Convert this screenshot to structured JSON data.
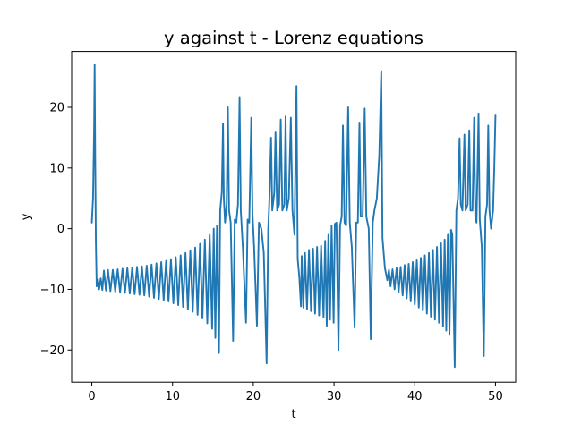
{
  "chart_data": {
    "type": "line",
    "title": "y against t - Lorenz equations",
    "xlabel": "t",
    "ylabel": "y",
    "xlim": [
      -2.5,
      52.5
    ],
    "ylim": [
      -25.3,
      29.2
    ],
    "x_ticks": [
      0,
      10,
      20,
      30,
      40,
      50
    ],
    "y_ticks": [
      -20,
      -10,
      0,
      10,
      20
    ],
    "x_tick_labels": [
      "0",
      "10",
      "20",
      "30",
      "40",
      "50"
    ],
    "y_tick_labels": [
      "−20",
      "−10",
      "0",
      "10",
      "20"
    ],
    "grid": false,
    "legend": false,
    "series": [
      {
        "color": "#1f77b4",
        "points": [
          [
            0.0,
            1.0
          ],
          [
            0.15,
            5.0
          ],
          [
            0.28,
            16.0
          ],
          [
            0.35,
            27.0
          ],
          [
            0.42,
            12.0
          ],
          [
            0.5,
            -2.0
          ],
          [
            0.6,
            -9.5
          ],
          [
            0.75,
            -8.3
          ],
          [
            0.9,
            -10.0
          ],
          [
            1.1,
            -8.2
          ],
          [
            1.3,
            -10.1
          ],
          [
            1.5,
            -6.9
          ],
          [
            1.75,
            -10.2
          ],
          [
            2.0,
            -6.8
          ],
          [
            2.3,
            -10.3
          ],
          [
            2.6,
            -6.8
          ],
          [
            2.9,
            -10.4
          ],
          [
            3.2,
            -6.7
          ],
          [
            3.5,
            -10.5
          ],
          [
            3.8,
            -6.6
          ],
          [
            4.1,
            -10.6
          ],
          [
            4.4,
            -6.5
          ],
          [
            4.7,
            -10.7
          ],
          [
            5.0,
            -6.4
          ],
          [
            5.3,
            -10.8
          ],
          [
            5.6,
            -6.3
          ],
          [
            5.9,
            -10.9
          ],
          [
            6.2,
            -6.2
          ],
          [
            6.5,
            -11.0
          ],
          [
            6.8,
            -6.1
          ],
          [
            7.1,
            -11.2
          ],
          [
            7.4,
            -5.9
          ],
          [
            7.7,
            -11.4
          ],
          [
            8.0,
            -5.7
          ],
          [
            8.3,
            -11.6
          ],
          [
            8.6,
            -5.5
          ],
          [
            8.9,
            -11.8
          ],
          [
            9.2,
            -5.3
          ],
          [
            9.5,
            -12.0
          ],
          [
            9.8,
            -5.0
          ],
          [
            10.1,
            -12.3
          ],
          [
            10.4,
            -4.7
          ],
          [
            10.7,
            -12.6
          ],
          [
            11.0,
            -4.4
          ],
          [
            11.3,
            -12.9
          ],
          [
            11.6,
            -4.0
          ],
          [
            11.9,
            -13.3
          ],
          [
            12.2,
            -3.6
          ],
          [
            12.5,
            -13.7
          ],
          [
            12.8,
            -3.1
          ],
          [
            13.1,
            -14.2
          ],
          [
            13.4,
            -2.5
          ],
          [
            13.7,
            -14.8
          ],
          [
            14.0,
            -1.8
          ],
          [
            14.3,
            -15.6
          ],
          [
            14.6,
            -1.0
          ],
          [
            14.9,
            -16.5
          ],
          [
            15.1,
            0.0
          ],
          [
            15.3,
            -18.0
          ],
          [
            15.5,
            0.5
          ],
          [
            15.75,
            -20.5
          ],
          [
            15.9,
            3.0
          ],
          [
            16.1,
            6.0
          ],
          [
            16.25,
            17.3
          ],
          [
            16.35,
            5.0
          ],
          [
            16.5,
            1.0
          ],
          [
            16.7,
            4.0
          ],
          [
            16.85,
            20.0
          ],
          [
            17.0,
            3.0
          ],
          [
            17.2,
            1.0
          ],
          [
            17.5,
            -18.5
          ],
          [
            17.7,
            1.5
          ],
          [
            17.9,
            1.0
          ],
          [
            18.1,
            4.0
          ],
          [
            18.3,
            21.7
          ],
          [
            18.45,
            3.0
          ],
          [
            18.7,
            -3.0
          ],
          [
            19.1,
            -15.5
          ],
          [
            19.3,
            1.5
          ],
          [
            19.5,
            1.0
          ],
          [
            19.75,
            18.3
          ],
          [
            19.9,
            2.5
          ],
          [
            20.1,
            -3.0
          ],
          [
            20.45,
            -16.0
          ],
          [
            20.7,
            1.0
          ],
          [
            21.0,
            0.0
          ],
          [
            21.3,
            -4.0
          ],
          [
            21.65,
            -22.2
          ],
          [
            21.85,
            0.0
          ],
          [
            22.0,
            5.0
          ],
          [
            22.2,
            15.0
          ],
          [
            22.35,
            3.0
          ],
          [
            22.6,
            6.0
          ],
          [
            22.75,
            16.0
          ],
          [
            22.95,
            3.0
          ],
          [
            23.2,
            4.0
          ],
          [
            23.4,
            18.0
          ],
          [
            23.6,
            3.0
          ],
          [
            23.85,
            4.0
          ],
          [
            24.0,
            18.5
          ],
          [
            24.15,
            3.0
          ],
          [
            24.4,
            5.0
          ],
          [
            24.65,
            18.3
          ],
          [
            24.85,
            3.0
          ],
          [
            25.1,
            -1.0
          ],
          [
            25.35,
            23.5
          ],
          [
            25.5,
            -5.0
          ],
          [
            25.7,
            -8.0
          ],
          [
            25.9,
            -12.8
          ],
          [
            26.0,
            -4.5
          ],
          [
            26.2,
            -13.0
          ],
          [
            26.4,
            -4.0
          ],
          [
            26.65,
            -13.3
          ],
          [
            26.9,
            -3.5
          ],
          [
            27.15,
            -13.6
          ],
          [
            27.4,
            -3.3
          ],
          [
            27.65,
            -14.0
          ],
          [
            27.9,
            -3.0
          ],
          [
            28.15,
            -14.3
          ],
          [
            28.4,
            -2.8
          ],
          [
            28.7,
            -14.6
          ],
          [
            28.9,
            -2.0
          ],
          [
            29.1,
            -16.0
          ],
          [
            29.3,
            -1.0
          ],
          [
            29.5,
            -15.0
          ],
          [
            29.7,
            0.5
          ],
          [
            29.95,
            -15.5
          ],
          [
            30.1,
            0.8
          ],
          [
            30.3,
            1.0
          ],
          [
            30.55,
            -20.0
          ],
          [
            30.75,
            0.5
          ],
          [
            30.95,
            2.0
          ],
          [
            31.1,
            17.0
          ],
          [
            31.3,
            1.0
          ],
          [
            31.5,
            0.5
          ],
          [
            31.75,
            20.0
          ],
          [
            31.95,
            1.0
          ],
          [
            32.2,
            -3.0
          ],
          [
            32.55,
            -16.3
          ],
          [
            32.75,
            1.0
          ],
          [
            32.95,
            1.0
          ],
          [
            33.15,
            17.5
          ],
          [
            33.3,
            2.0
          ],
          [
            33.55,
            2.0
          ],
          [
            33.8,
            19.8
          ],
          [
            34.0,
            2.0
          ],
          [
            34.3,
            0.0
          ],
          [
            34.55,
            -18.2
          ],
          [
            34.8,
            1.0
          ],
          [
            35.0,
            3.0
          ],
          [
            35.3,
            5.0
          ],
          [
            35.6,
            12.0
          ],
          [
            35.85,
            26.0
          ],
          [
            36.0,
            -1.5
          ],
          [
            36.3,
            -6.5
          ],
          [
            36.6,
            -8.5
          ],
          [
            36.8,
            -6.8
          ],
          [
            37.0,
            -9.5
          ],
          [
            37.25,
            -6.7
          ],
          [
            37.5,
            -10.0
          ],
          [
            37.75,
            -6.5
          ],
          [
            38.0,
            -10.5
          ],
          [
            38.25,
            -6.3
          ],
          [
            38.5,
            -11.0
          ],
          [
            38.75,
            -6.0
          ],
          [
            39.0,
            -11.5
          ],
          [
            39.25,
            -5.8
          ],
          [
            39.5,
            -12.0
          ],
          [
            39.75,
            -5.5
          ],
          [
            40.0,
            -12.5
          ],
          [
            40.25,
            -5.2
          ],
          [
            40.5,
            -13.0
          ],
          [
            40.75,
            -4.8
          ],
          [
            41.0,
            -13.5
          ],
          [
            41.25,
            -4.4
          ],
          [
            41.5,
            -14.0
          ],
          [
            41.75,
            -4.0
          ],
          [
            42.0,
            -14.5
          ],
          [
            42.25,
            -3.5
          ],
          [
            42.5,
            -15.0
          ],
          [
            42.75,
            -3.0
          ],
          [
            43.0,
            -15.5
          ],
          [
            43.25,
            -2.4
          ],
          [
            43.5,
            -16.1
          ],
          [
            43.7,
            -1.8
          ],
          [
            43.9,
            -16.8
          ],
          [
            44.1,
            -1.0
          ],
          [
            44.3,
            -17.5
          ],
          [
            44.5,
            -0.2
          ],
          [
            44.65,
            -1.0
          ],
          [
            44.95,
            -22.8
          ],
          [
            45.15,
            3.0
          ],
          [
            45.35,
            5.0
          ],
          [
            45.55,
            14.9
          ],
          [
            45.7,
            4.0
          ],
          [
            45.9,
            3.0
          ],
          [
            46.15,
            15.5
          ],
          [
            46.3,
            3.0
          ],
          [
            46.55,
            4.0
          ],
          [
            46.75,
            16.2
          ],
          [
            46.9,
            3.0
          ],
          [
            47.15,
            3.0
          ],
          [
            47.35,
            18.3
          ],
          [
            47.5,
            2.0
          ],
          [
            47.65,
            1.0
          ],
          [
            47.9,
            19.0
          ],
          [
            48.05,
            1.5
          ],
          [
            48.3,
            -3.0
          ],
          [
            48.55,
            -21.0
          ],
          [
            48.75,
            2.0
          ],
          [
            48.95,
            4.0
          ],
          [
            49.1,
            17.0
          ],
          [
            49.25,
            3.0
          ],
          [
            49.45,
            0.0
          ],
          [
            49.7,
            3.0
          ],
          [
            49.85,
            10.0
          ],
          [
            50.0,
            18.8
          ]
        ]
      }
    ]
  }
}
